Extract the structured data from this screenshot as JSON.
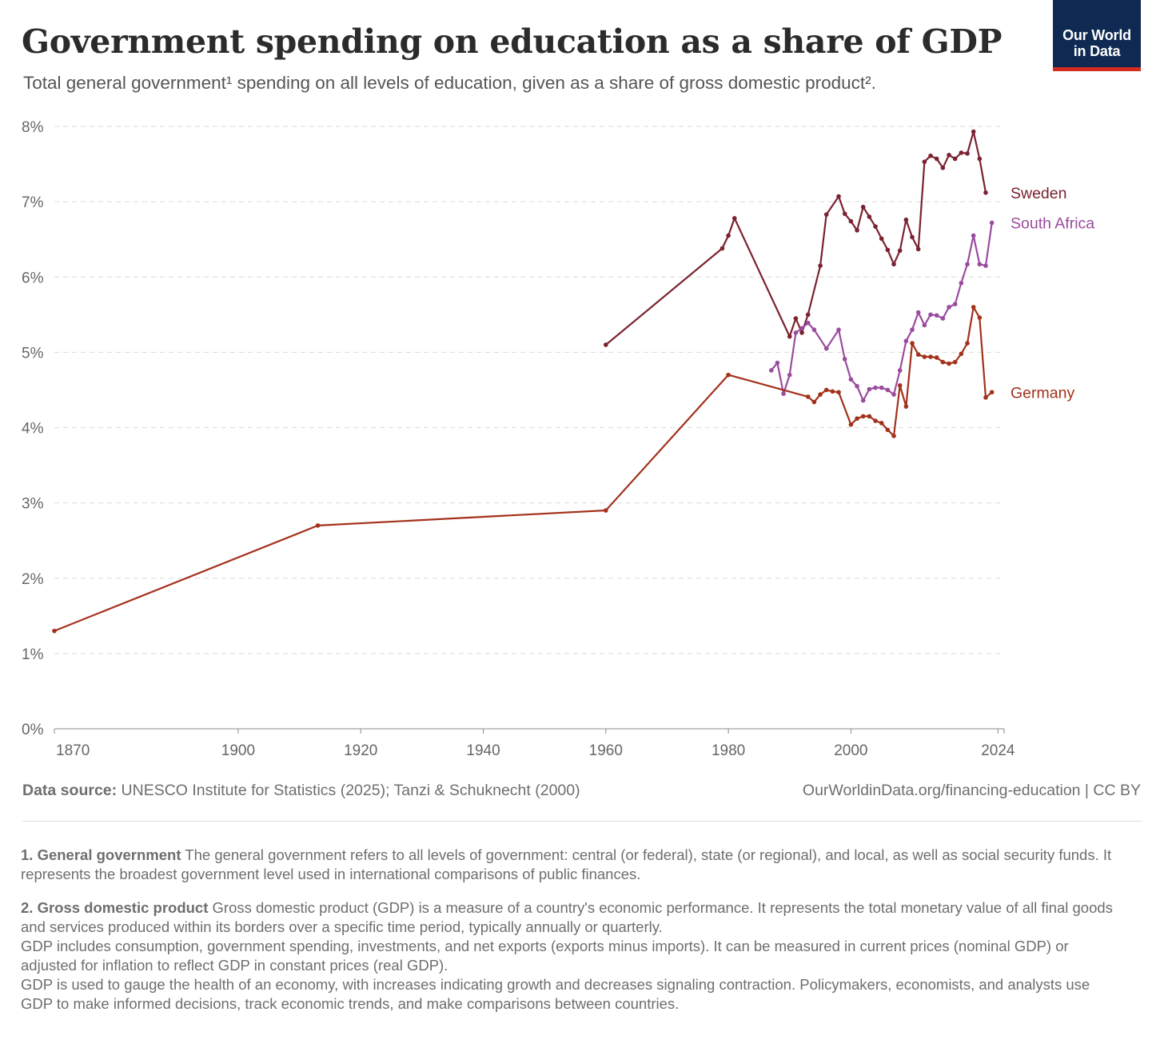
{
  "header": {
    "title": "Government spending on education as a share of GDP",
    "subtitle": "Total general government¹ spending on all levels of education, given as a share of gross domestic product².",
    "logo_line1": "Our World",
    "logo_line2": "in Data"
  },
  "footer": {
    "source_label": "Data source:",
    "source_text": " UNESCO Institute for Statistics (2025); Tanzi & Schuknecht (2000)",
    "url": "OurWorldinData.org/financing-education | CC BY"
  },
  "notes": [
    {
      "label": "1. General government",
      "paragraphs": [
        "The general government refers to all levels of government: central (or federal), state (or regional), and local, as well as social security funds. It represents the broadest government level used in international comparisons of public finances."
      ]
    },
    {
      "label": "2. Gross domestic product",
      "paragraphs": [
        "Gross domestic product (GDP) is a measure of a country's economic performance. It represents the total monetary value of all final goods and services produced within its borders over a specific time period, typically annually or quarterly.",
        "GDP includes consumption, government spending, investments, and net exports (exports minus imports). It can be measured in current prices (nominal GDP) or adjusted for inflation to reflect GDP in constant prices (real GDP).",
        "GDP is used to gauge the health of an economy, with increases indicating growth and decreases signaling contraction. Policymakers, economists, and analysts use GDP to make informed decisions, track economic trends, and make comparisons between countries."
      ]
    }
  ],
  "chart_data": {
    "type": "line",
    "title": "Government spending on education as a share of GDP",
    "xlim": [
      1870,
      2025
    ],
    "ylim": [
      0,
      8
    ],
    "x_ticks": [
      1870,
      1900,
      1920,
      1940,
      1960,
      1980,
      2000,
      2024
    ],
    "y_ticks": [
      0,
      1,
      2,
      3,
      4,
      5,
      6,
      7,
      8
    ],
    "y_tick_labels": [
      "0%",
      "1%",
      "2%",
      "3%",
      "4%",
      "5%",
      "6%",
      "7%",
      "8%"
    ],
    "grid": "horizontal-dashed",
    "legend": "end-of-line labels",
    "series": [
      {
        "name": "Sweden",
        "color": "#7a2230",
        "points": [
          [
            1960,
            5.1
          ],
          [
            1979,
            6.38
          ],
          [
            1980,
            6.55
          ],
          [
            1981,
            6.78
          ],
          [
            1990,
            5.21
          ],
          [
            1991,
            5.45
          ],
          [
            1992,
            5.26
          ],
          [
            1993,
            5.5
          ],
          [
            1995,
            6.15
          ],
          [
            1996,
            6.83
          ],
          [
            1998,
            7.07
          ],
          [
            1999,
            6.84
          ],
          [
            2000,
            6.74
          ],
          [
            2001,
            6.62
          ],
          [
            2002,
            6.93
          ],
          [
            2003,
            6.8
          ],
          [
            2004,
            6.67
          ],
          [
            2005,
            6.51
          ],
          [
            2006,
            6.36
          ],
          [
            2007,
            6.17
          ],
          [
            2008,
            6.35
          ],
          [
            2009,
            6.76
          ],
          [
            2010,
            6.53
          ],
          [
            2011,
            6.37
          ],
          [
            2012,
            7.53
          ],
          [
            2013,
            7.61
          ],
          [
            2014,
            7.57
          ],
          [
            2015,
            7.45
          ],
          [
            2016,
            7.62
          ],
          [
            2017,
            7.57
          ],
          [
            2018,
            7.65
          ],
          [
            2019,
            7.64
          ],
          [
            2020,
            7.93
          ],
          [
            2021,
            7.57
          ],
          [
            2022,
            7.12
          ]
        ]
      },
      {
        "name": "South Africa",
        "color": "#9b4b9f",
        "points": [
          [
            1987,
            4.76
          ],
          [
            1988,
            4.86
          ],
          [
            1989,
            4.45
          ],
          [
            1990,
            4.7
          ],
          [
            1991,
            5.26
          ],
          [
            1992,
            5.32
          ],
          [
            1993,
            5.39
          ],
          [
            1994,
            5.3
          ],
          [
            1996,
            5.05
          ],
          [
            1998,
            5.3
          ],
          [
            1999,
            4.91
          ],
          [
            2000,
            4.64
          ],
          [
            2001,
            4.55
          ],
          [
            2002,
            4.36
          ],
          [
            2003,
            4.51
          ],
          [
            2004,
            4.53
          ],
          [
            2005,
            4.53
          ],
          [
            2006,
            4.5
          ],
          [
            2007,
            4.44
          ],
          [
            2008,
            4.76
          ],
          [
            2009,
            5.15
          ],
          [
            2010,
            5.3
          ],
          [
            2011,
            5.53
          ],
          [
            2012,
            5.36
          ],
          [
            2013,
            5.5
          ],
          [
            2014,
            5.49
          ],
          [
            2015,
            5.45
          ],
          [
            2016,
            5.6
          ],
          [
            2017,
            5.64
          ],
          [
            2018,
            5.92
          ],
          [
            2019,
            6.17
          ],
          [
            2020,
            6.55
          ],
          [
            2021,
            6.17
          ],
          [
            2022,
            6.15
          ],
          [
            2023,
            6.72
          ]
        ]
      },
      {
        "name": "Germany",
        "color": "#a3311b",
        "points": [
          [
            1870,
            1.3
          ],
          [
            1913,
            2.7
          ],
          [
            1960,
            2.9
          ],
          [
            1980,
            4.7
          ],
          [
            1993,
            4.41
          ],
          [
            1994,
            4.34
          ],
          [
            1995,
            4.44
          ],
          [
            1996,
            4.5
          ],
          [
            1997,
            4.48
          ],
          [
            1998,
            4.47
          ],
          [
            2000,
            4.04
          ],
          [
            2001,
            4.12
          ],
          [
            2002,
            4.15
          ],
          [
            2003,
            4.15
          ],
          [
            2004,
            4.09
          ],
          [
            2005,
            4.06
          ],
          [
            2006,
            3.97
          ],
          [
            2007,
            3.89
          ],
          [
            2008,
            4.56
          ],
          [
            2009,
            4.28
          ],
          [
            2010,
            5.12
          ],
          [
            2011,
            4.97
          ],
          [
            2012,
            4.94
          ],
          [
            2013,
            4.94
          ],
          [
            2014,
            4.93
          ],
          [
            2015,
            4.87
          ],
          [
            2016,
            4.85
          ],
          [
            2017,
            4.87
          ],
          [
            2018,
            4.98
          ],
          [
            2019,
            5.12
          ],
          [
            2020,
            5.6
          ],
          [
            2021,
            5.46
          ],
          [
            2022,
            4.4
          ],
          [
            2023,
            4.47
          ]
        ]
      }
    ]
  }
}
